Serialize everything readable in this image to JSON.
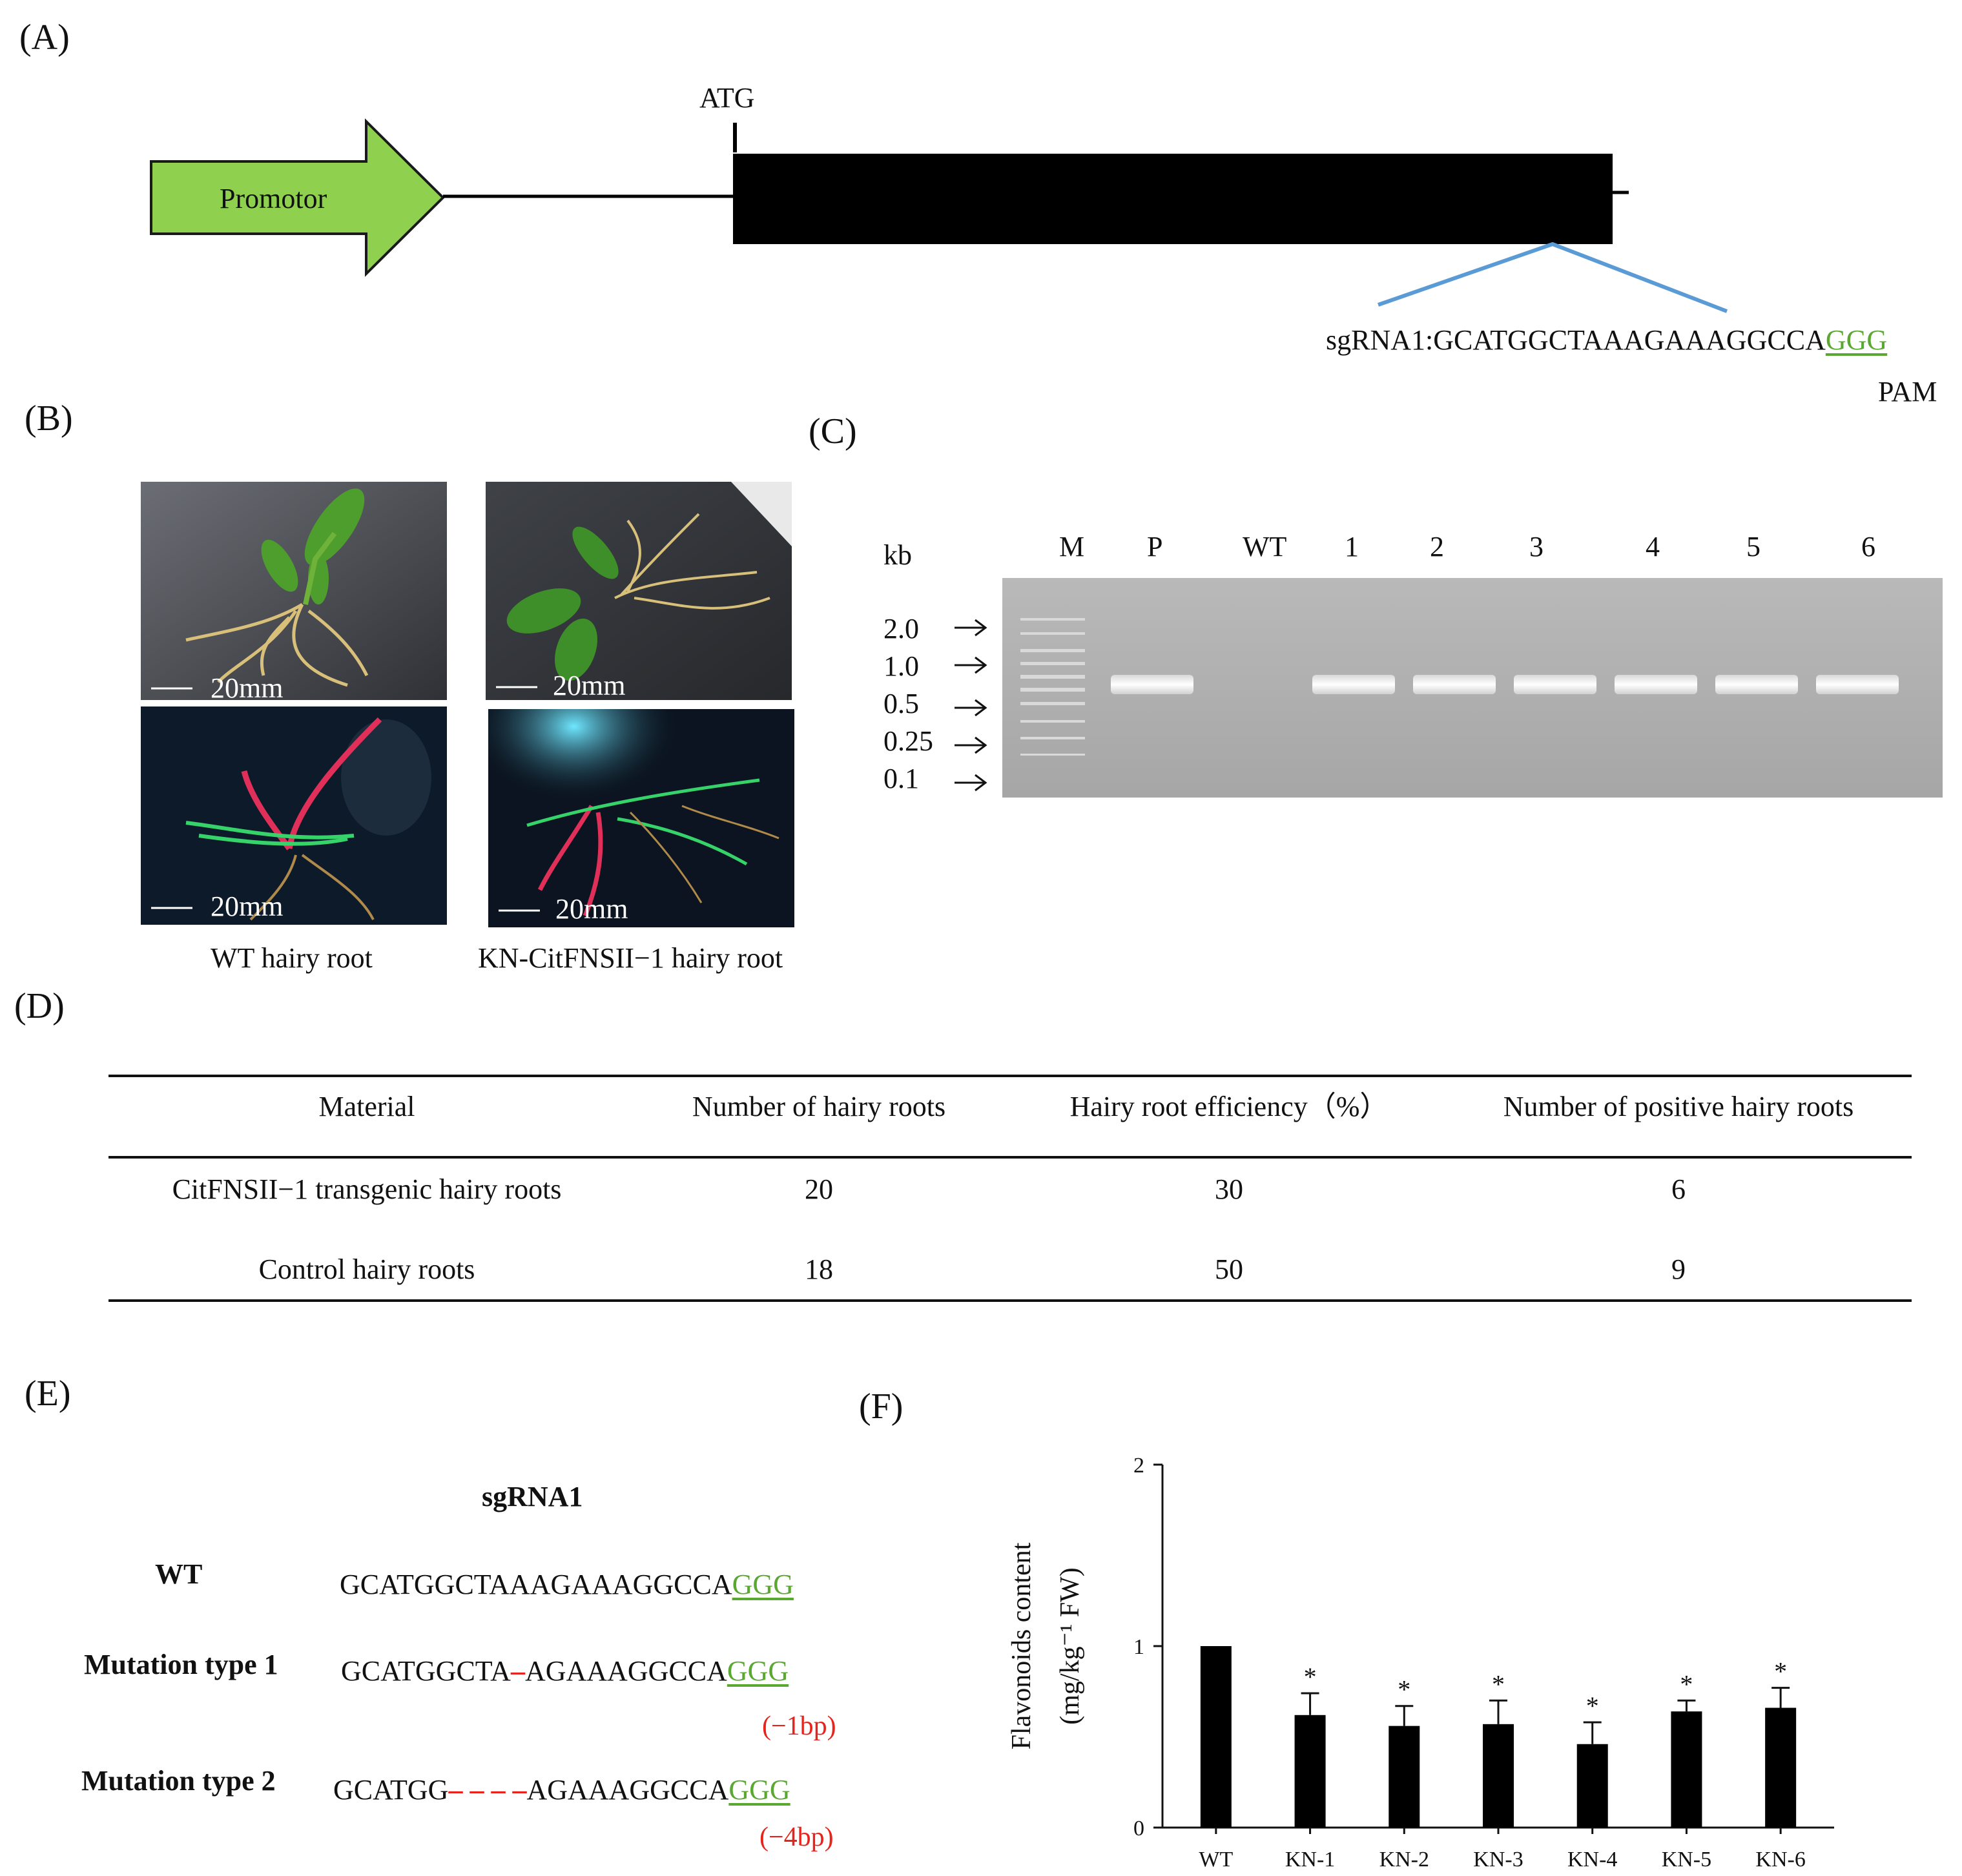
{
  "panels": {
    "a": "(A)",
    "b": "(B)",
    "c": "(C)",
    "d": "(D)",
    "e": "(E)",
    "f": "(F)"
  },
  "panel_a": {
    "promoter_label": "Promotor",
    "atg_label": "ATG",
    "sgrna_prefix": "sgRNA1:",
    "sgrna_seq": "GCATGGCTAAAGAAAGGCCA",
    "sgrna_pam_seq": "GGG",
    "pam_label": "PAM",
    "colors": {
      "promoter_fill": "#8fd14f",
      "exon_fill": "#000000",
      "sgrna_line": "#5b9bd5",
      "pam_text": "#5aa832"
    }
  },
  "panel_b": {
    "scale_bar": "20mm",
    "captions": [
      "WT hairy root",
      "KN-CitFNSII−1 hairy root"
    ]
  },
  "panel_c": {
    "unit": "kb",
    "lane_labels": [
      "M",
      "P",
      "WT",
      "1",
      "2",
      "3",
      "4",
      "5",
      "6"
    ],
    "ladder": [
      "2.0",
      "1.0",
      "0.5",
      "0.25",
      "0.1"
    ]
  },
  "panel_d": {
    "headers": [
      "Material",
      "Number of hairy roots",
      "Hairy root efficiency（%）",
      "Number of positive hairy roots"
    ],
    "rows": [
      [
        "CitFNSII−1 transgenic hairy roots",
        "20",
        "30",
        "6"
      ],
      [
        "Control hairy roots",
        "18",
        "50",
        "9"
      ]
    ]
  },
  "panel_e": {
    "title": "sgRNA1",
    "rows": [
      {
        "label": "WT",
        "before": "GCATGGCTAAAGAAAGGCCA",
        "deletion": "",
        "after": "",
        "pam": "GGG",
        "note": ""
      },
      {
        "label": "Mutation type 1",
        "before": "GCATGGCTA",
        "deletion": "–",
        "after": "AGAAAGGCCA",
        "pam": "GGG",
        "note": "(−1bp)"
      },
      {
        "label": "Mutation type 2",
        "before": "GCATGG",
        "deletion": "– – – –",
        "after": "AGAAAGGCCA",
        "pam": "GGG",
        "note": "(−4bp)"
      }
    ],
    "colors": {
      "deletion": "#e8231c",
      "pam": "#5aa832"
    }
  },
  "chart_data": {
    "type": "bar",
    "categories": [
      "WT",
      "KN-1",
      "KN-2",
      "KN-3",
      "KN-4",
      "KN-5",
      "KN-6"
    ],
    "values": [
      1.0,
      0.62,
      0.56,
      0.57,
      0.46,
      0.64,
      0.66
    ],
    "errors": [
      0,
      0.12,
      0.11,
      0.13,
      0.12,
      0.06,
      0.11
    ],
    "significance": [
      "",
      "*",
      "*",
      "*",
      "*",
      "*",
      "*"
    ],
    "ylabel_line1": "Flavonoids content",
    "ylabel_line2": "(mg/kg⁻¹ FW)",
    "ylim": [
      0,
      2
    ],
    "yticks": [
      "0",
      "1",
      "2"
    ],
    "grid": false,
    "bar_color": "#000000"
  }
}
